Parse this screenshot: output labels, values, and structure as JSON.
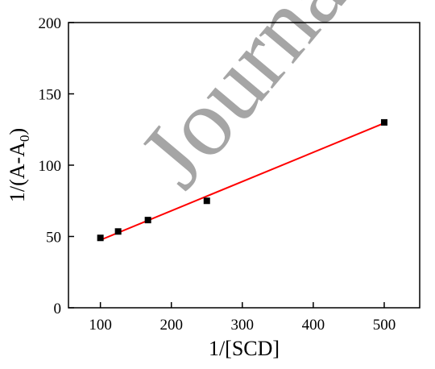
{
  "watermark": "Journal",
  "chart_data": {
    "type": "scatter",
    "xlabel": "1/[SCD]",
    "ylabel_main": "1/(A-A",
    "ylabel_sub": "0",
    "ylabel_close": ")",
    "xlim": [
      55,
      550
    ],
    "ylim": [
      0,
      200
    ],
    "xticks": [
      100,
      200,
      300,
      400,
      500
    ],
    "yticks": [
      0,
      50,
      100,
      150,
      200
    ],
    "grid": false,
    "series": [
      {
        "marker": "square",
        "color": "#000000",
        "x": [
          100,
          125,
          167,
          250,
          500
        ],
        "y": [
          49,
          53.5,
          61.5,
          75,
          130
        ]
      }
    ],
    "fit_line": {
      "color": "#ff0000",
      "x": [
        100,
        500
      ],
      "y": [
        47.5,
        129.5
      ]
    }
  }
}
